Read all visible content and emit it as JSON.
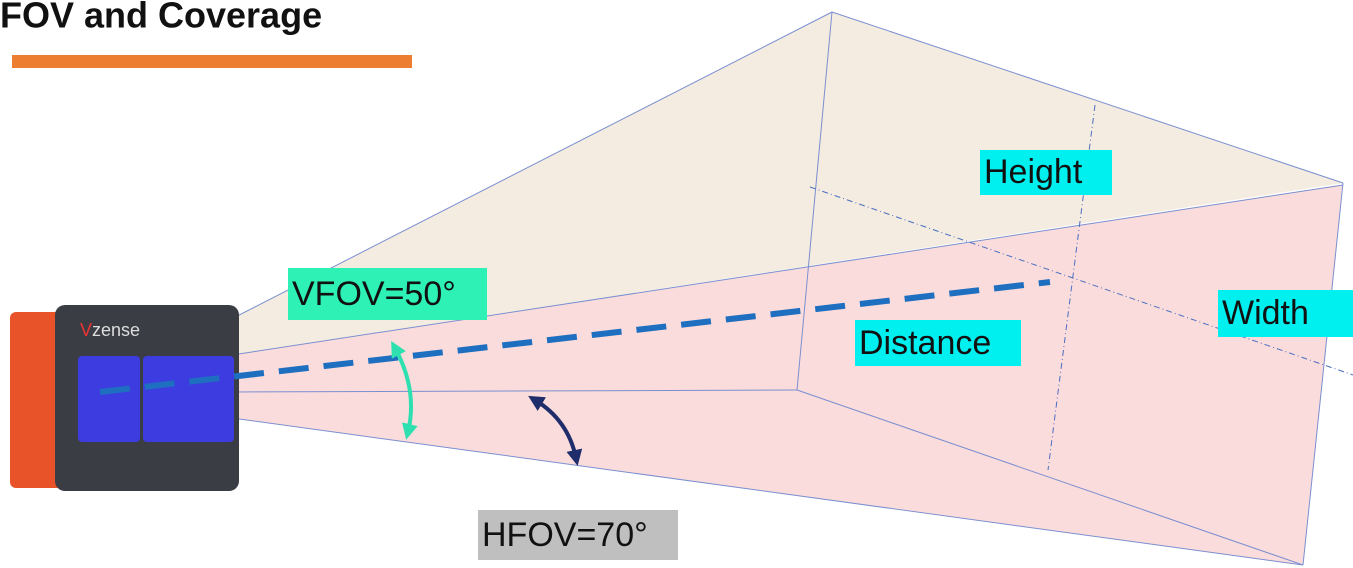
{
  "title": "FOV and Coverage",
  "camera": {
    "logo_mark": "V",
    "logo_text": "zense"
  },
  "labels": {
    "vfov": "VFOV=50°",
    "hfov": "HFOV=70°",
    "height": "Height",
    "width": "Width",
    "distance": "Distance"
  }
}
